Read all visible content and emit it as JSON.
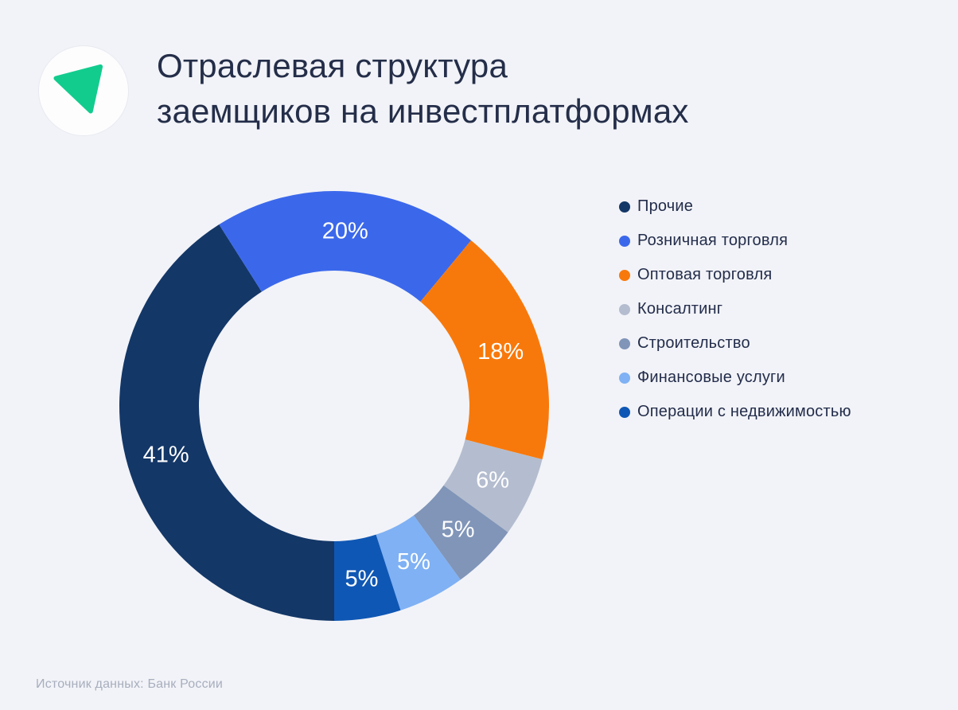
{
  "page": {
    "background_color": "#F2F3F8",
    "title": "Отраслевая структура\nзаемщиков на инвестплатформах",
    "title_color": "#242E49",
    "source_note": "Источник данных: Банк России",
    "logo": {
      "icon": "green-triangle",
      "triangle_color": "#12CC8E",
      "circle_color": "#FDFDFE"
    }
  },
  "chart_data": {
    "type": "pie",
    "subtype": "donut",
    "title": "Отраслевая структура заемщиков на инвестплатформах",
    "unit": "%",
    "start_angle_deg": 180,
    "direction": "clockwise",
    "legend_position": "right",
    "inner_radius_ratio": 0.63,
    "slices": [
      {
        "label": "Прочие",
        "value": 41,
        "data_label": "41%",
        "color": "#133767"
      },
      {
        "label": "Розничная торговля",
        "value": 20,
        "data_label": "20%",
        "color": "#3B68EB"
      },
      {
        "label": "Оптовая торговля",
        "value": 18,
        "data_label": "18%",
        "color": "#F8790B"
      },
      {
        "label": "Консалтинг",
        "value": 6,
        "data_label": "6%",
        "color": "#B4BDCF"
      },
      {
        "label": "Строительство",
        "value": 5,
        "data_label": "5%",
        "color": "#8095B8"
      },
      {
        "label": "Финансовые услуги",
        "value": 5,
        "data_label": "5%",
        "color": "#7FB1F4"
      },
      {
        "label": "Операции с недвижимостью",
        "value": 5,
        "data_label": "5%",
        "color": "#0F57B4"
      }
    ]
  }
}
